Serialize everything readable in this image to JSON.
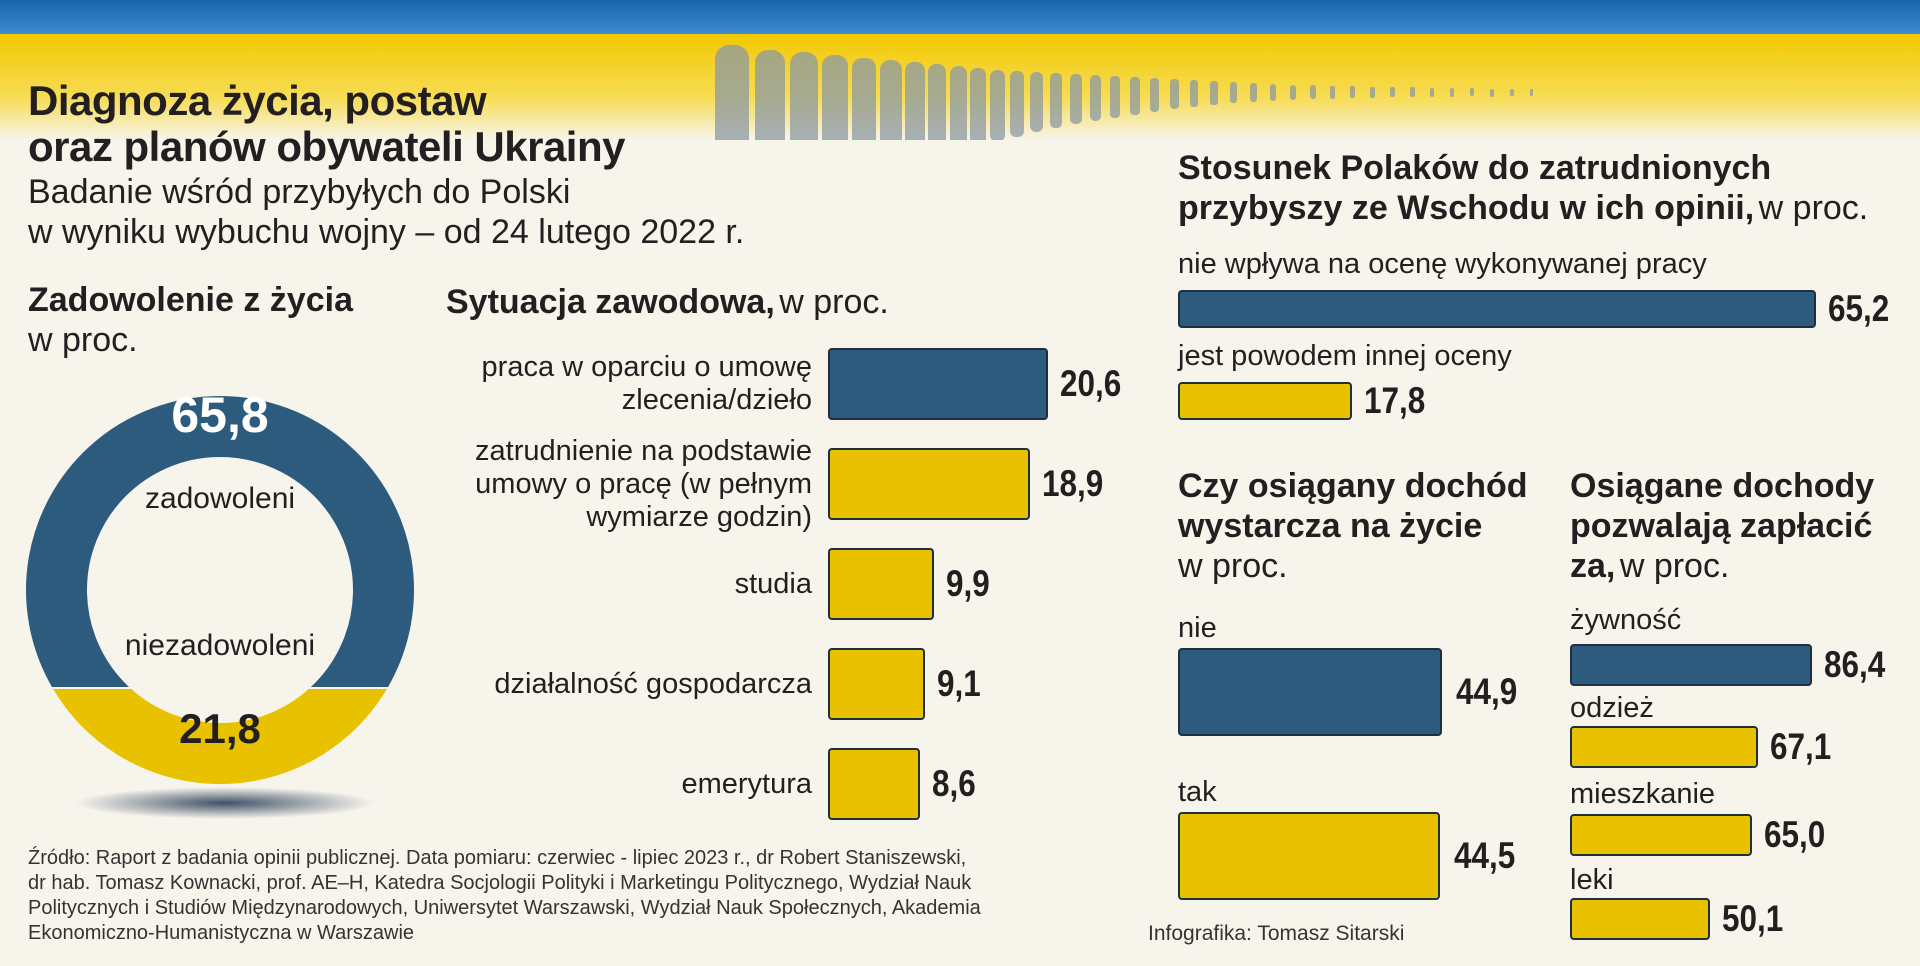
{
  "header": {
    "title_line1": "Diagnoza życia, postaw",
    "title_line2": "oraz planów obywateli Ukrainy",
    "subtitle_line1": "Badanie wśród przybyłych do Polski",
    "subtitle_line2": "w wyniku wybuchu wojny – od 24 lutego 2022 r."
  },
  "colors": {
    "blue": "#2d5b7e",
    "yellow": "#e8c200",
    "flag_blue": "#1f6fb4"
  },
  "chart_data": [
    {
      "type": "pie",
      "title": "Zadowolenie z życia",
      "unit": "w proc.",
      "categories": [
        "zadowoleni",
        "niezadowoleni"
      ],
      "values": [
        65.8,
        21.8
      ],
      "value_labels": [
        "65,8",
        "21,8"
      ]
    },
    {
      "type": "bar",
      "title": "Sytuacja zawodowa,",
      "unit": "w proc.",
      "categories": [
        "praca w oparciu o umowę zlecenia/dzieło",
        "zatrudnienie na podstawie umowy o pracę (w pełnym wymiarze godzin)",
        "studia",
        "działalność gospodarcza",
        "emerytura"
      ],
      "label_lines": [
        [
          "praca w oparciu o umowę",
          "zlecenia/dzieło"
        ],
        [
          "zatrudnienie na podstawie",
          "umowy o pracę (w pełnym",
          "wymiarze godzin)"
        ],
        [
          "studia"
        ],
        [
          "działalność gospodarcza"
        ],
        [
          "emerytura"
        ]
      ],
      "values": [
        20.6,
        18.9,
        9.9,
        9.1,
        8.6
      ],
      "value_labels": [
        "20,6",
        "18,9",
        "9,9",
        "9,1",
        "8,6"
      ]
    },
    {
      "type": "bar",
      "title_line1": "Stosunek Polaków do zatrudnionych",
      "title_line2": "przybyszy ze Wschodu w ich opinii,",
      "unit": "w proc.",
      "categories": [
        "nie wpływa na ocenę wykonywanej pracy",
        "jest powodem innej oceny"
      ],
      "values": [
        65.2,
        17.8
      ],
      "value_labels": [
        "65,2",
        "17,8"
      ]
    },
    {
      "type": "bar",
      "title_line1": "Czy osiągany dochód",
      "title_line2": "wystarcza na życie",
      "unit": "w proc.",
      "categories": [
        "nie",
        "tak"
      ],
      "values": [
        44.9,
        44.5
      ],
      "value_labels": [
        "44,9",
        "44,5"
      ]
    },
    {
      "type": "bar",
      "title_line1": "Osiągane dochody",
      "title_line2": "pozwalają zapłacić",
      "title_line3": "za,",
      "unit": "w proc.",
      "categories": [
        "żywność",
        "odzież",
        "mieszkanie",
        "leki"
      ],
      "values": [
        86.4,
        67.1,
        65.0,
        50.1
      ],
      "value_labels": [
        "86,4",
        "67,1",
        "65,0",
        "50,1"
      ]
    }
  ],
  "footer": {
    "source_lines": [
      "Źródło: Raport z badania opinii publicznej. Data pomiaru: czerwiec - lipiec 2023 r., dr Robert Staniszewski,",
      "dr hab. Tomasz Kownacki, prof. AE–H, Katedra Socjologii Polityki i Marketingu Politycznego, Wydział Nauk",
      "Politycznych i Studiów Międzynarodowych, Uniwersytet Warszawski, Wydział Nauk Społecznych, Akademia",
      "Ekonomiczno-Humanistyczna w Warszawie"
    ],
    "credit": "Infografika: Tomasz Sitarski"
  }
}
